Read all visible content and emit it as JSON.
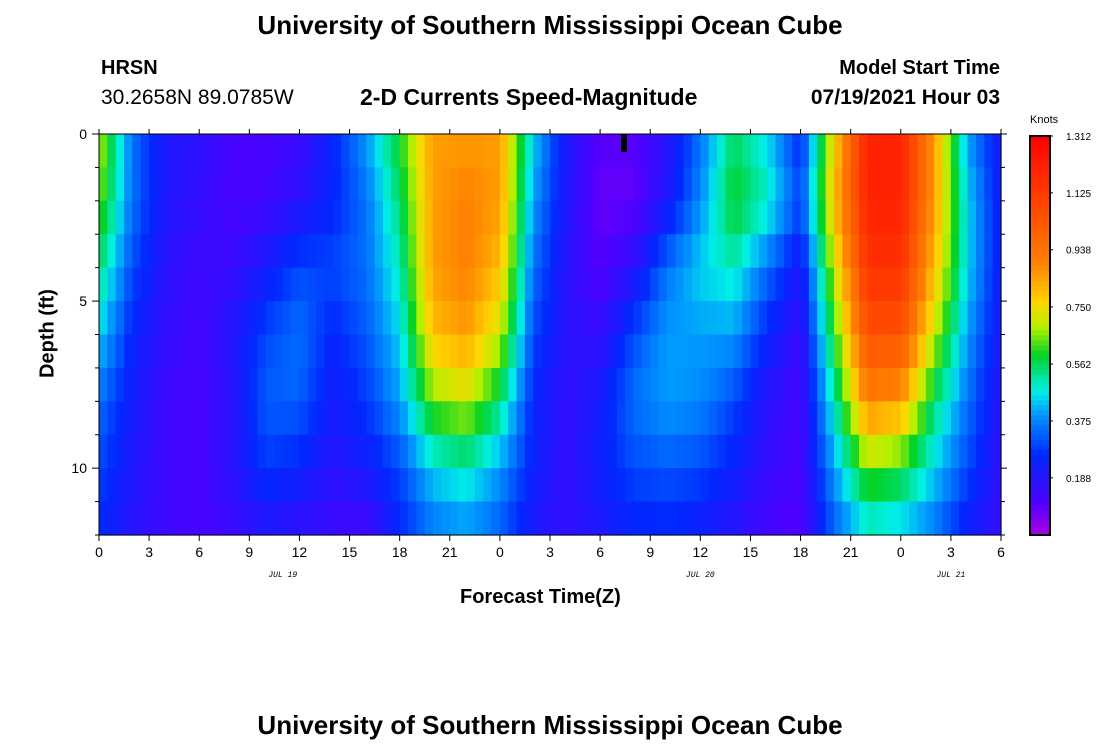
{
  "chart_data": {
    "type": "heatmap",
    "title": "University of Southern Mississippi Ocean Cube",
    "footer_title": "University of Southern Mississippi Ocean Cube",
    "station": "HRSN",
    "location": "30.2658N  89.0785W",
    "subtitle": "2-D Currents Speed-Magnitude",
    "model_label": "Model Start Time",
    "model_time": "07/19/2021 Hour 03",
    "xlabel": "Forecast Time(Z)",
    "ylabel": "Depth (ft)",
    "x_ticks": [
      "0",
      "3",
      "6",
      "9",
      "12",
      "15",
      "18",
      "21",
      "0",
      "3",
      "6",
      "9",
      "12",
      "15",
      "18",
      "21",
      "0",
      "3",
      "6"
    ],
    "date_labels": [
      {
        "text": "JUL 19",
        "hour": 11
      },
      {
        "text": "JUL 20",
        "hour": 36
      },
      {
        "text": "JUL 21",
        "hour": 51
      }
    ],
    "y_ticks": [
      "0",
      "5",
      "10"
    ],
    "y_range": [
      0,
      12
    ],
    "x_range_hours": [
      0,
      54
    ],
    "colorbar": {
      "unit": "Knots",
      "labels": [
        "1.312",
        "1.125",
        "0.938",
        "0.750",
        "0.562",
        "0.375",
        "0.188"
      ],
      "range": [
        0,
        1.312
      ]
    },
    "grid": {
      "times": [
        0,
        2,
        4,
        6,
        8,
        10,
        12,
        14,
        16,
        18,
        20,
        22,
        24,
        26,
        28,
        30,
        32,
        34,
        36,
        38,
        40,
        42,
        44,
        46,
        48,
        50,
        52,
        54
      ],
      "depths": [
        0,
        2,
        4,
        6,
        8,
        10,
        12
      ],
      "values": [
        [
          0.7,
          0.35,
          0.2,
          0.18,
          0.12,
          0.12,
          0.14,
          0.25,
          0.4,
          0.6,
          0.85,
          0.85,
          0.85,
          0.45,
          0.2,
          0.1,
          0.1,
          0.18,
          0.35,
          0.55,
          0.45,
          0.25,
          0.75,
          1.2,
          1.2,
          0.85,
          0.4,
          0.2
        ],
        [
          0.65,
          0.35,
          0.2,
          0.16,
          0.12,
          0.13,
          0.18,
          0.25,
          0.35,
          0.55,
          0.85,
          0.9,
          0.85,
          0.4,
          0.2,
          0.08,
          0.08,
          0.2,
          0.38,
          0.6,
          0.5,
          0.3,
          0.8,
          1.2,
          1.2,
          0.85,
          0.45,
          0.22
        ],
        [
          0.55,
          0.3,
          0.18,
          0.14,
          0.15,
          0.22,
          0.3,
          0.3,
          0.35,
          0.5,
          0.85,
          0.9,
          0.8,
          0.35,
          0.18,
          0.1,
          0.18,
          0.35,
          0.45,
          0.5,
          0.35,
          0.2,
          0.7,
          1.15,
          1.15,
          0.8,
          0.45,
          0.22
        ],
        [
          0.45,
          0.25,
          0.16,
          0.13,
          0.2,
          0.3,
          0.35,
          0.25,
          0.32,
          0.45,
          0.8,
          0.85,
          0.7,
          0.3,
          0.18,
          0.16,
          0.3,
          0.4,
          0.4,
          0.4,
          0.25,
          0.15,
          0.6,
          1.05,
          1.05,
          0.7,
          0.4,
          0.2
        ],
        [
          0.35,
          0.22,
          0.14,
          0.12,
          0.18,
          0.33,
          0.33,
          0.22,
          0.28,
          0.4,
          0.65,
          0.7,
          0.55,
          0.25,
          0.16,
          0.22,
          0.35,
          0.4,
          0.38,
          0.3,
          0.18,
          0.12,
          0.5,
          0.9,
          0.85,
          0.55,
          0.35,
          0.18
        ],
        [
          0.3,
          0.2,
          0.14,
          0.12,
          0.18,
          0.28,
          0.25,
          0.18,
          0.22,
          0.3,
          0.45,
          0.5,
          0.4,
          0.24,
          0.16,
          0.24,
          0.3,
          0.32,
          0.3,
          0.24,
          0.16,
          0.12,
          0.4,
          0.65,
          0.6,
          0.45,
          0.3,
          0.16
        ],
        [
          0.26,
          0.18,
          0.14,
          0.12,
          0.14,
          0.18,
          0.16,
          0.14,
          0.12,
          0.25,
          0.35,
          0.38,
          0.32,
          0.2,
          0.16,
          0.2,
          0.24,
          0.25,
          0.22,
          0.18,
          0.12,
          0.1,
          0.32,
          0.45,
          0.42,
          0.35,
          0.22,
          0.16
        ]
      ]
    }
  }
}
